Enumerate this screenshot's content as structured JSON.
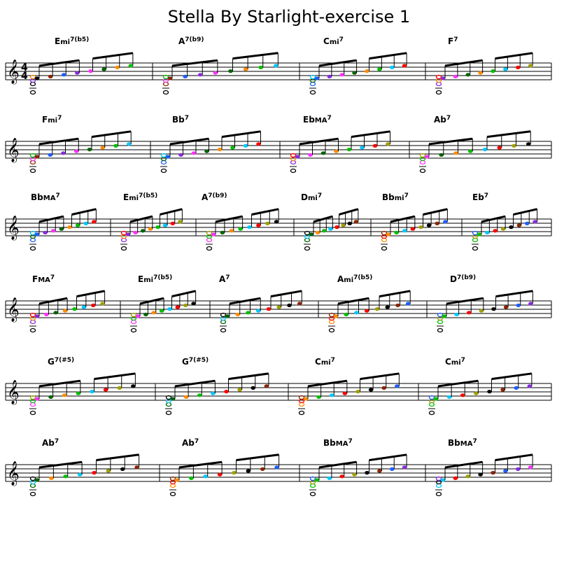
{
  "title": "Stella By Starlight-exercise 1",
  "time_signature": {
    "top": "4",
    "bottom": "4"
  },
  "note_colors": [
    "#000000",
    "#8b2500",
    "#1e5eff",
    "#8a2be2",
    "#ff33ff",
    "#006400",
    "#ff8c00",
    "#00c000",
    "#00c8ff",
    "#ff0000",
    "#a0a000"
  ],
  "rows": [
    {
      "chords": [
        {
          "root": "E",
          "quality": "mi",
          "ext": "7(b5)"
        },
        {
          "root": "A",
          "quality": "",
          "ext": "7(b9)"
        },
        {
          "root": "C",
          "quality": "mi",
          "ext": "7"
        },
        {
          "root": "F",
          "quality": "",
          "ext": "7"
        }
      ]
    },
    {
      "chords": [
        {
          "root": "F",
          "quality": "mi",
          "ext": "7"
        },
        {
          "root": "Bb",
          "quality": "",
          "ext": "7"
        },
        {
          "root": "Eb",
          "quality": "MA",
          "ext": "7"
        },
        {
          "root": "Ab",
          "quality": "",
          "ext": "7"
        }
      ]
    },
    {
      "chords": [
        {
          "root": "Bb",
          "quality": "MA",
          "ext": "7"
        },
        {
          "root": "E",
          "quality": "mi",
          "ext": "7(b5)"
        },
        {
          "root": "A",
          "quality": "",
          "ext": "7(b9)"
        },
        {
          "root": "D",
          "quality": "mi",
          "ext": "7"
        },
        {
          "root": "Bb",
          "quality": "mi",
          "ext": "7"
        },
        {
          "root": "Eb",
          "quality": "",
          "ext": "7"
        }
      ]
    },
    {
      "chords": [
        {
          "root": "F",
          "quality": "MA",
          "ext": "7"
        },
        {
          "root": "E",
          "quality": "mi",
          "ext": "7(b5)"
        },
        {
          "root": "A",
          "quality": "",
          "ext": "7"
        },
        {
          "root": "A",
          "quality": "mi",
          "ext": "7(b5)"
        },
        {
          "root": "D",
          "quality": "",
          "ext": "7(b9)"
        }
      ]
    },
    {
      "chords": [
        {
          "root": "G",
          "quality": "",
          "ext": "7(#5)"
        },
        {
          "root": "G",
          "quality": "",
          "ext": "7(#5)"
        },
        {
          "root": "C",
          "quality": "mi",
          "ext": "7"
        },
        {
          "root": "C",
          "quality": "mi",
          "ext": "7"
        }
      ]
    },
    {
      "chords": [
        {
          "root": "Ab",
          "quality": "",
          "ext": "7"
        },
        {
          "root": "Ab",
          "quality": "",
          "ext": "7"
        },
        {
          "root": "Bb",
          "quality": "MA",
          "ext": "7"
        },
        {
          "root": "Bb",
          "quality": "MA",
          "ext": "7"
        }
      ]
    }
  ]
}
